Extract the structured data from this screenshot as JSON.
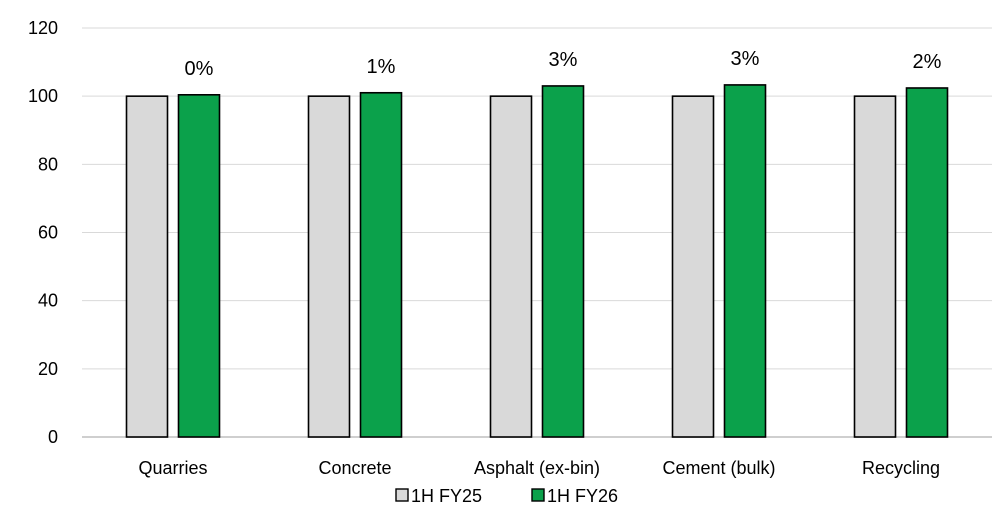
{
  "chart_data": {
    "type": "bar",
    "categories": [
      "Quarries",
      "Concrete",
      "Asphalt (ex-bin)",
      "Cement (bulk)",
      "Recycling"
    ],
    "series": [
      {
        "name": "1H FY25",
        "color": "#d9d9d9",
        "values": [
          100,
          100,
          100,
          100,
          100
        ]
      },
      {
        "name": "1H FY26",
        "color": "#0ba14b",
        "values": [
          100.4,
          101,
          103,
          103.3,
          102.4
        ]
      }
    ],
    "data_labels": [
      "0%",
      "1%",
      "3%",
      "3%",
      "2%"
    ],
    "y_ticks": [
      "0",
      "20",
      "40",
      "60",
      "80",
      "100",
      "120"
    ],
    "ylim": [
      0,
      120
    ],
    "grid": true,
    "legend_position": "bottom-center"
  }
}
